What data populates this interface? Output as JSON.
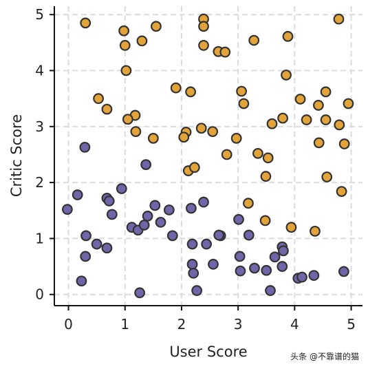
{
  "chart_data": {
    "type": "scatter",
    "title": "",
    "xlabel": "User Score",
    "ylabel": "Critic Score",
    "xlim": [
      -0.25,
      5.2
    ],
    "ylim": [
      -0.2,
      5.15
    ],
    "x_ticks": [
      "0",
      "1",
      "2",
      "3",
      "4",
      "5"
    ],
    "y_ticks": [
      "0",
      "1",
      "2",
      "3",
      "4",
      "5"
    ],
    "grid": true,
    "legend": "none",
    "series": [
      {
        "color": "#E3A33B",
        "points": [
          [
            0.3,
            4.85
          ],
          [
            0.98,
            4.71
          ],
          [
            1.0,
            4.45
          ],
          [
            1.3,
            4.53
          ],
          [
            1.55,
            4.79
          ],
          [
            2.39,
            4.92
          ],
          [
            2.39,
            4.79
          ],
          [
            2.39,
            4.45
          ],
          [
            2.65,
            4.34
          ],
          [
            2.77,
            4.33
          ],
          [
            3.28,
            4.54
          ],
          [
            3.88,
            4.61
          ],
          [
            4.78,
            4.92
          ],
          [
            1.02,
            4.0
          ],
          [
            3.85,
            3.92
          ],
          [
            1.9,
            3.69
          ],
          [
            2.16,
            3.62
          ],
          [
            3.06,
            3.63
          ],
          [
            4.55,
            3.62
          ],
          [
            0.53,
            3.5
          ],
          [
            0.68,
            3.31
          ],
          [
            1.18,
            3.2
          ],
          [
            1.05,
            3.13
          ],
          [
            3.1,
            3.41
          ],
          [
            4.1,
            3.49
          ],
          [
            4.42,
            3.38
          ],
          [
            4.95,
            3.41
          ],
          [
            3.79,
            3.15
          ],
          [
            3.6,
            3.05
          ],
          [
            4.21,
            3.12
          ],
          [
            4.55,
            3.12
          ],
          [
            4.79,
            3.03
          ],
          [
            1.19,
            2.91
          ],
          [
            2.35,
            2.97
          ],
          [
            2.08,
            2.9
          ],
          [
            2.04,
            2.81
          ],
          [
            2.55,
            2.91
          ],
          [
            1.5,
            2.79
          ],
          [
            2.97,
            2.79
          ],
          [
            4.43,
            2.71
          ],
          [
            4.88,
            2.69
          ],
          [
            2.8,
            2.5
          ],
          [
            3.35,
            2.52
          ],
          [
            3.53,
            2.44
          ],
          [
            2.12,
            2.21
          ],
          [
            2.23,
            2.27
          ],
          [
            3.49,
            2.11
          ],
          [
            4.57,
            2.1
          ],
          [
            4.83,
            1.84
          ],
          [
            3.18,
            1.63
          ],
          [
            3.48,
            1.32
          ],
          [
            3.94,
            1.2
          ],
          [
            4.36,
            1.13
          ]
        ]
      },
      {
        "color": "#6F65A8",
        "points": [
          [
            0.29,
            2.63
          ],
          [
            1.37,
            2.32
          ],
          [
            0.16,
            1.78
          ],
          [
            0.94,
            1.89
          ],
          [
            0.68,
            1.72
          ],
          [
            0.72,
            1.67
          ],
          [
            0.77,
            1.43
          ],
          [
            1.53,
            1.59
          ],
          [
            1.78,
            1.51
          ],
          [
            2.39,
            1.65
          ],
          [
            2.17,
            1.54
          ],
          [
            -0.02,
            1.52
          ],
          [
            1.4,
            1.4
          ],
          [
            1.63,
            1.29
          ],
          [
            1.12,
            1.2
          ],
          [
            1.23,
            1.15
          ],
          [
            1.34,
            1.24
          ],
          [
            0.31,
            1.05
          ],
          [
            0.5,
            0.9
          ],
          [
            0.68,
            0.83
          ],
          [
            1.84,
            1.05
          ],
          [
            2.69,
            1.05
          ],
          [
            2.66,
            1.06
          ],
          [
            3.01,
            1.34
          ],
          [
            3.19,
            1.06
          ],
          [
            2.19,
            0.9
          ],
          [
            2.44,
            0.9
          ],
          [
            0.3,
            0.68
          ],
          [
            3.03,
            0.68
          ],
          [
            3.78,
            0.85
          ],
          [
            3.8,
            0.78
          ],
          [
            3.65,
            0.67
          ],
          [
            2.19,
            0.54
          ],
          [
            2.56,
            0.54
          ],
          [
            2.21,
            0.38
          ],
          [
            3.29,
            0.47
          ],
          [
            3.5,
            0.43
          ],
          [
            3.04,
            0.42
          ],
          [
            3.78,
            0.5
          ],
          [
            0.23,
            0.24
          ],
          [
            1.26,
            0.03
          ],
          [
            2.27,
            0.07
          ],
          [
            3.57,
            0.07
          ],
          [
            4.06,
            0.29
          ],
          [
            4.13,
            0.31
          ],
          [
            4.34,
            0.34
          ],
          [
            4.87,
            0.41
          ]
        ]
      }
    ]
  },
  "watermark": {
    "text": "头条 @不靠谱的猫"
  }
}
